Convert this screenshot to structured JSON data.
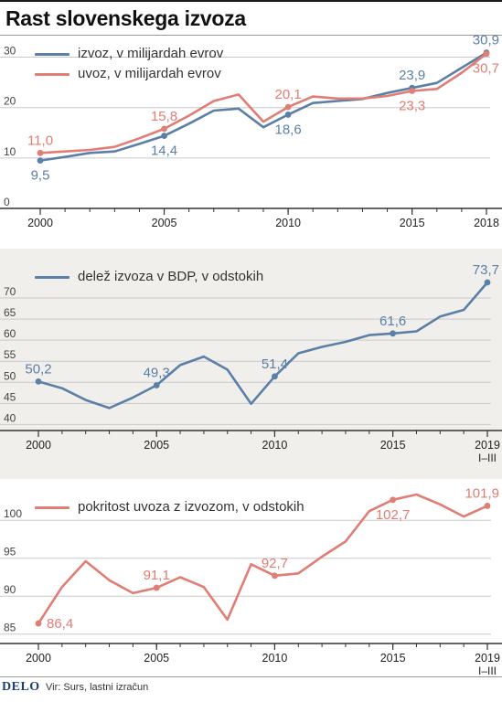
{
  "header": {
    "title": "Rast slovenskega izvoza"
  },
  "footer": {
    "logo": "DELO",
    "source": "Vir: Surs, lastni izračun"
  },
  "colors": {
    "blue": "#5b7fa6",
    "red": "#e07d75",
    "axis": "#333333",
    "grid": "#c9c9c9"
  },
  "chart_data": [
    {
      "type": "line",
      "legend": [
        "izvoz, v milijardah evrov",
        "uvoz, v milijardah evrov"
      ],
      "x": [
        2000,
        2001,
        2002,
        2003,
        2004,
        2005,
        2006,
        2007,
        2008,
        2009,
        2010,
        2011,
        2012,
        2013,
        2014,
        2015,
        2016,
        2017,
        2018
      ],
      "ylim": [
        0,
        33
      ],
      "yticks": [
        0,
        10,
        20,
        30
      ],
      "xticks": [
        {
          "x": 2000,
          "label": "2000",
          "sub": ""
        },
        {
          "x": 2005,
          "label": "2005",
          "sub": ""
        },
        {
          "x": 2010,
          "label": "2010",
          "sub": ""
        },
        {
          "x": 2015,
          "label": "2015",
          "sub": ""
        },
        {
          "x": 2018,
          "label": "2018",
          "sub": ""
        }
      ],
      "series": [
        {
          "name": "izvoz, v milijardah evrov",
          "color": "#5b7fa6",
          "values": [
            9.5,
            10.2,
            11.0,
            11.3,
            12.8,
            14.4,
            16.8,
            19.4,
            19.8,
            16.1,
            18.6,
            20.9,
            21.3,
            21.7,
            22.9,
            23.9,
            24.9,
            27.9,
            30.9
          ],
          "labels": [
            {
              "i": 0,
              "text": "9,5",
              "pos": "below"
            },
            {
              "i": 5,
              "text": "14,4",
              "pos": "below"
            },
            {
              "i": 10,
              "text": "18,6",
              "pos": "below"
            },
            {
              "i": 15,
              "text": "23,9",
              "pos": "above"
            },
            {
              "i": 18,
              "text": "30,9",
              "pos": "above"
            }
          ]
        },
        {
          "name": "uvoz, v milijardah evrov",
          "color": "#e07d75",
          "values": [
            11.0,
            11.3,
            11.6,
            12.2,
            13.9,
            15.8,
            18.4,
            21.3,
            22.6,
            17.2,
            20.1,
            22.2,
            21.8,
            21.8,
            22.3,
            23.3,
            23.7,
            26.9,
            30.7
          ],
          "labels": [
            {
              "i": 0,
              "text": "11,0",
              "pos": "above"
            },
            {
              "i": 5,
              "text": "15,8",
              "pos": "above"
            },
            {
              "i": 10,
              "text": "20,1",
              "pos": "above"
            },
            {
              "i": 15,
              "text": "23,3",
              "pos": "below"
            },
            {
              "i": 18,
              "text": "30,7",
              "pos": "below"
            }
          ]
        }
      ]
    },
    {
      "type": "line",
      "legend": [
        "delež izvoza v BDP, v odstokih"
      ],
      "x": [
        2000,
        2001,
        2002,
        2003,
        2004,
        2005,
        2006,
        2007,
        2008,
        2009,
        2010,
        2011,
        2012,
        2013,
        2014,
        2015,
        2016,
        2017,
        2018,
        2019
      ],
      "ylim": [
        39,
        75
      ],
      "yticks": [
        40,
        45,
        50,
        55,
        60,
        65,
        70
      ],
      "xticks": [
        {
          "x": 2000,
          "label": "2000",
          "sub": ""
        },
        {
          "x": 2005,
          "label": "2005",
          "sub": ""
        },
        {
          "x": 2010,
          "label": "2010",
          "sub": ""
        },
        {
          "x": 2015,
          "label": "2015",
          "sub": ""
        },
        {
          "x": 2019,
          "label": "2019",
          "sub": "I–III"
        }
      ],
      "series": [
        {
          "name": "delež izvoza v BDP, v odstokih",
          "color": "#5b7fa6",
          "values": [
            50.2,
            48.6,
            45.8,
            43.9,
            46.4,
            49.3,
            54.1,
            56.1,
            53.0,
            44.9,
            51.4,
            56.9,
            58.4,
            59.6,
            61.2,
            61.6,
            62.1,
            65.6,
            67.2,
            73.7
          ],
          "labels": [
            {
              "i": 0,
              "text": "50,2",
              "pos": "above"
            },
            {
              "i": 5,
              "text": "49,3",
              "pos": "above"
            },
            {
              "i": 10,
              "text": "51,4",
              "pos": "above"
            },
            {
              "i": 15,
              "text": "61,6",
              "pos": "above"
            },
            {
              "i": 19,
              "text": "73,7",
              "pos": "above"
            }
          ]
        }
      ]
    },
    {
      "type": "line",
      "legend": [
        "pokritost uvoza z izvozom, v odstokih"
      ],
      "x": [
        2000,
        2001,
        2002,
        2003,
        2004,
        2005,
        2006,
        2007,
        2008,
        2009,
        2010,
        2011,
        2012,
        2013,
        2014,
        2015,
        2016,
        2017,
        2018,
        2019
      ],
      "ylim": [
        84,
        104
      ],
      "yticks": [
        85,
        90,
        95,
        100
      ],
      "xticks": [
        {
          "x": 2000,
          "label": "2000",
          "sub": ""
        },
        {
          "x": 2005,
          "label": "2005",
          "sub": ""
        },
        {
          "x": 2010,
          "label": "2010",
          "sub": ""
        },
        {
          "x": 2015,
          "label": "2015",
          "sub": ""
        },
        {
          "x": 2019,
          "label": "2019",
          "sub": "I–III"
        }
      ],
      "series": [
        {
          "name": "pokritost uvoza z izvozom, v odstokih",
          "color": "#e07d75",
          "values": [
            86.4,
            91.2,
            94.6,
            92.1,
            90.4,
            91.1,
            92.5,
            91.2,
            86.9,
            94.2,
            92.7,
            93.0,
            95.2,
            97.2,
            101.2,
            102.7,
            103.4,
            102.1,
            100.5,
            101.9
          ],
          "labels": [
            {
              "i": 0,
              "text": "86,4",
              "pos": "right"
            },
            {
              "i": 5,
              "text": "91,1",
              "pos": "above"
            },
            {
              "i": 10,
              "text": "92,7",
              "pos": "above"
            },
            {
              "i": 15,
              "text": "102,7",
              "pos": "below"
            },
            {
              "i": 19,
              "text": "101,9",
              "pos": "above"
            }
          ]
        }
      ]
    }
  ]
}
